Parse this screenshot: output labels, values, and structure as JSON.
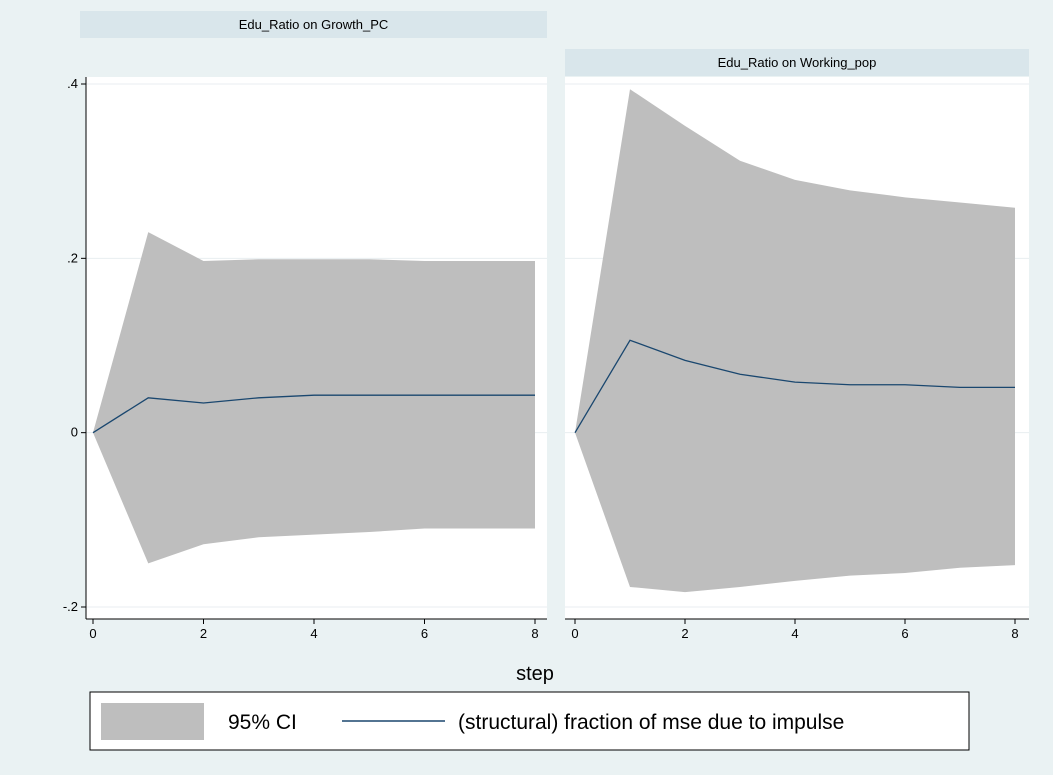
{
  "chart_data": {
    "type": "area",
    "xlabel": "step",
    "ylim": [
      -0.2,
      0.4
    ],
    "yticks": [
      -0.2,
      0,
      0.2,
      0.4
    ],
    "ytick_labels": [
      "-.2",
      "0",
      ".2",
      ".4"
    ],
    "xticks": [
      0,
      2,
      4,
      6,
      8
    ],
    "xtick_labels": [
      "0",
      "2",
      "4",
      "6",
      "8"
    ],
    "grid": true,
    "legend_position": "bottom",
    "legend": {
      "ci_label": "95% CI",
      "line_label": "(structural) fraction of mse due to impulse"
    },
    "colors": {
      "band": "#bebebe",
      "line": "#1a476f",
      "panel_bg": "#ffffff",
      "outer_bg": "#eaf2f3",
      "title_bg": "#d9e6eb"
    },
    "panels": [
      {
        "title": "Edu_Ratio on Growth_PC",
        "x": [
          0,
          1,
          2,
          3,
          4,
          5,
          6,
          7,
          8
        ],
        "values": [
          0,
          0.04,
          0.034,
          0.04,
          0.043,
          0.043,
          0.043,
          0.043,
          0.043
        ],
        "upper": [
          0,
          0.23,
          0.197,
          0.199,
          0.199,
          0.199,
          0.197,
          0.197,
          0.197
        ],
        "lower": [
          0,
          -0.15,
          -0.128,
          -0.12,
          -0.117,
          -0.114,
          -0.11,
          -0.11,
          -0.11
        ]
      },
      {
        "title": "Edu_Ratio on Working_pop",
        "x": [
          0,
          1,
          2,
          3,
          4,
          5,
          6,
          7,
          8
        ],
        "values": [
          0,
          0.106,
          0.083,
          0.067,
          0.058,
          0.055,
          0.055,
          0.052,
          0.052
        ],
        "upper": [
          0,
          0.394,
          0.352,
          0.312,
          0.29,
          0.278,
          0.27,
          0.264,
          0.258
        ],
        "lower": [
          0,
          -0.177,
          -0.183,
          -0.177,
          -0.17,
          -0.164,
          -0.161,
          -0.155,
          -0.152
        ]
      }
    ]
  }
}
